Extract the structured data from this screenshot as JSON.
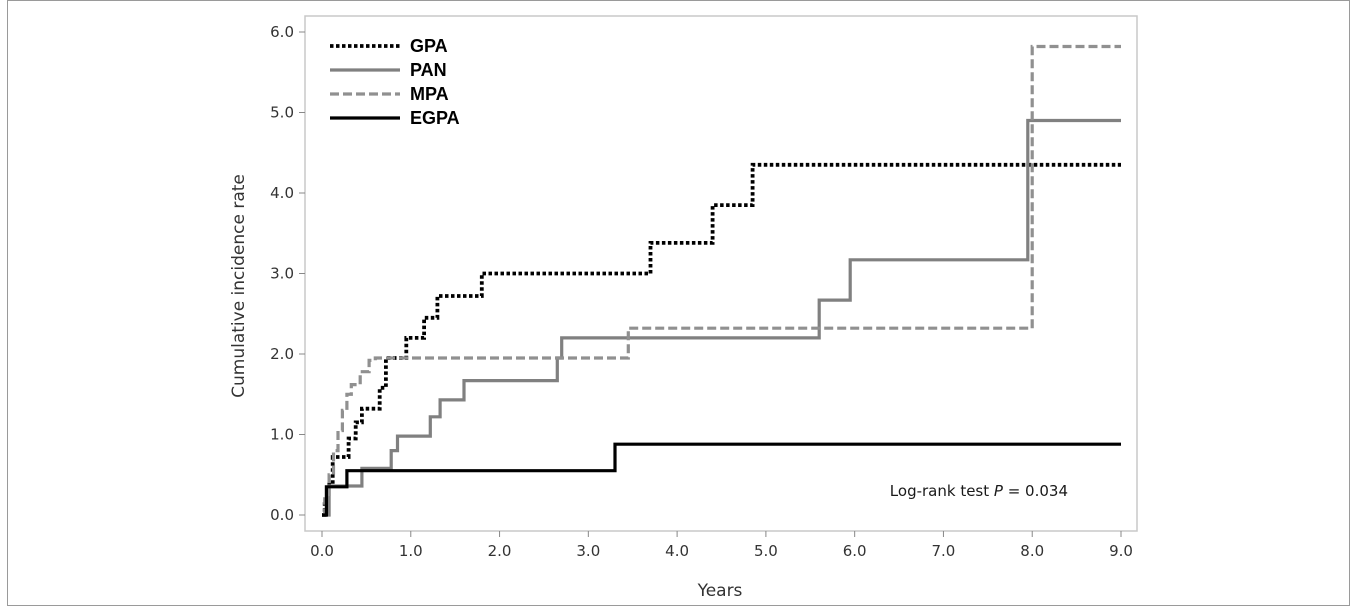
{
  "chart_data": {
    "type": "line",
    "xlabel": "Years",
    "ylabel": "Cumulative incidence rate",
    "xlim": [
      0,
      9
    ],
    "ylim": [
      0,
      6
    ],
    "x_ticks": [
      "0.0",
      "1.0",
      "2.0",
      "3.0",
      "4.0",
      "5.0",
      "6.0",
      "7.0",
      "8.0",
      "9.0"
    ],
    "y_ticks": [
      "0.0",
      "1.0",
      "2.0",
      "3.0",
      "4.0",
      "5.0",
      "6.0"
    ],
    "grid": false,
    "legend_position": "top-left",
    "annotation": {
      "text_before": "Log-rank test ",
      "p_symbol": "P",
      "text_after": " = 0.034"
    },
    "series": [
      {
        "name": "GPA",
        "style": "dotted",
        "color": "#000000",
        "points": [
          [
            0,
            0
          ],
          [
            0.03,
            0.18
          ],
          [
            0.06,
            0.38
          ],
          [
            0.12,
            0.72
          ],
          [
            0.2,
            0.72
          ],
          [
            0.3,
            0.95
          ],
          [
            0.38,
            1.15
          ],
          [
            0.45,
            1.32
          ],
          [
            0.58,
            1.32
          ],
          [
            0.65,
            1.58
          ],
          [
            0.72,
            1.95
          ],
          [
            0.95,
            2.2
          ],
          [
            1.15,
            2.45
          ],
          [
            1.3,
            2.72
          ],
          [
            1.55,
            2.72
          ],
          [
            1.8,
            3.0
          ],
          [
            3.7,
            3.38
          ],
          [
            4.4,
            3.85
          ],
          [
            4.85,
            4.35
          ],
          [
            9.0,
            4.35
          ]
        ]
      },
      {
        "name": "PAN",
        "style": "solid",
        "color": "#808080",
        "points": [
          [
            0,
            0
          ],
          [
            0.08,
            0.36
          ],
          [
            0.3,
            0.36
          ],
          [
            0.45,
            0.58
          ],
          [
            0.72,
            0.58
          ],
          [
            0.78,
            0.8
          ],
          [
            0.85,
            0.98
          ],
          [
            1.05,
            0.98
          ],
          [
            1.22,
            1.22
          ],
          [
            1.33,
            1.43
          ],
          [
            1.6,
            1.67
          ],
          [
            2.65,
            1.95
          ],
          [
            2.7,
            2.2
          ],
          [
            5.6,
            2.67
          ],
          [
            5.95,
            3.17
          ],
          [
            7.95,
            4.9
          ],
          [
            9.0,
            4.9
          ]
        ]
      },
      {
        "name": "MPA",
        "style": "dashed",
        "color": "#909090",
        "points": [
          [
            0,
            0
          ],
          [
            0.03,
            0.2
          ],
          [
            0.08,
            0.5
          ],
          [
            0.13,
            0.8
          ],
          [
            0.18,
            1.05
          ],
          [
            0.23,
            1.3
          ],
          [
            0.28,
            1.5
          ],
          [
            0.33,
            1.62
          ],
          [
            0.43,
            1.78
          ],
          [
            0.53,
            1.92
          ],
          [
            0.6,
            1.95
          ],
          [
            3.45,
            2.32
          ],
          [
            8.0,
            5.82
          ],
          [
            9.0,
            5.82
          ]
        ]
      },
      {
        "name": "EGPA",
        "style": "solid",
        "color": "#000000",
        "points": [
          [
            0,
            0
          ],
          [
            0.05,
            0.35
          ],
          [
            0.28,
            0.55
          ],
          [
            3.3,
            0.88
          ],
          [
            9.0,
            0.88
          ]
        ]
      }
    ]
  }
}
